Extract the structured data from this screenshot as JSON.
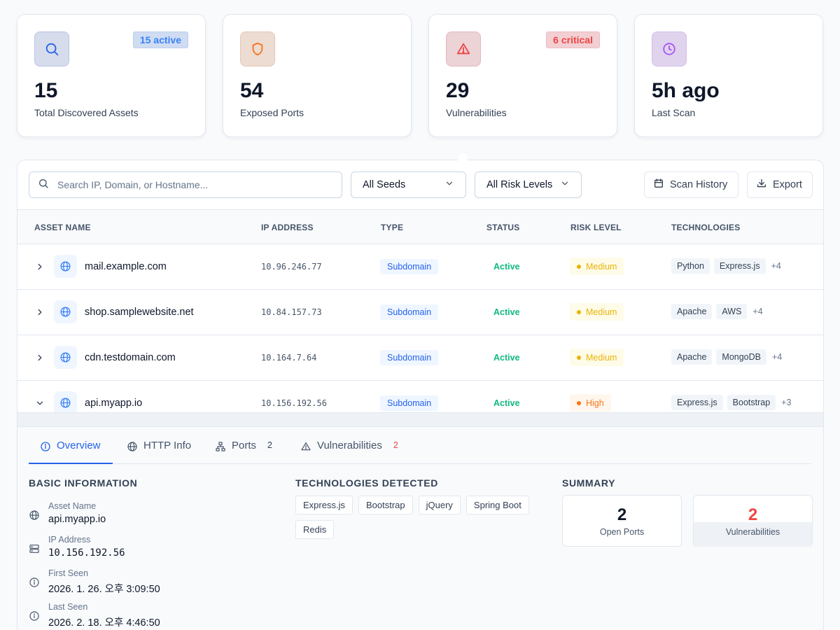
{
  "stats": [
    {
      "value": "15",
      "label": "Total Discovered Assets",
      "badge": "15 active",
      "icon": "search-icon"
    },
    {
      "value": "54",
      "label": "Exposed Ports",
      "badge": "",
      "icon": "shield-icon"
    },
    {
      "value": "29",
      "label": "Vulnerabilities",
      "badge": "6 critical",
      "icon": "warning-icon"
    },
    {
      "value": "5h ago",
      "label": "Last Scan",
      "badge": "",
      "icon": "clock-icon"
    }
  ],
  "toolbar": {
    "search_placeholder": "Search IP, Domain, or Hostname...",
    "seed_filter": "All Seeds",
    "risk_filter": "All Risk Levels",
    "scan_history": "Scan History",
    "export": "Export"
  },
  "table": {
    "headers": [
      "ASSET NAME",
      "IP ADDRESS",
      "TYPE",
      "STATUS",
      "RISK LEVEL",
      "TECHNOLOGIES"
    ],
    "rows": [
      {
        "name": "mail.example.com",
        "ip": "10.96.246.77",
        "type": "Subdomain",
        "status": "Active",
        "risk": "Medium",
        "tech1": "Python",
        "tech2": "Express.js",
        "more": "+4",
        "expanded": false
      },
      {
        "name": "shop.samplewebsite.net",
        "ip": "10.84.157.73",
        "type": "Subdomain",
        "status": "Active",
        "risk": "Medium",
        "tech1": "Apache",
        "tech2": "AWS",
        "more": "+4",
        "expanded": false
      },
      {
        "name": "cdn.testdomain.com",
        "ip": "10.164.7.64",
        "type": "Subdomain",
        "status": "Active",
        "risk": "Medium",
        "tech1": "Apache",
        "tech2": "MongoDB",
        "more": "+4",
        "expanded": false
      },
      {
        "name": "api.myapp.io",
        "ip": "10.156.192.56",
        "type": "Subdomain",
        "status": "Active",
        "risk": "High",
        "tech1": "Express.js",
        "tech2": "Bootstrap",
        "more": "+3",
        "expanded": true
      }
    ]
  },
  "detail": {
    "tabs": [
      {
        "label": "Overview",
        "count": ""
      },
      {
        "label": "HTTP Info",
        "count": ""
      },
      {
        "label": "Ports",
        "count": "2"
      },
      {
        "label": "Vulnerabilities",
        "count": "2"
      }
    ],
    "basic_title": "BASIC INFORMATION",
    "tech_title": "TECHNOLOGIES DETECTED",
    "summary_title": "SUMMARY",
    "info": [
      {
        "label": "Asset Name",
        "value": "api.myapp.io"
      },
      {
        "label": "IP Address",
        "value": "10.156.192.56"
      },
      {
        "label": "First Seen",
        "value": "2026. 1. 26. 오후 3:09:50"
      },
      {
        "label": "Last Seen",
        "value": "2026. 2. 18. 오후 4:46:50"
      }
    ],
    "technologies": [
      "Express.js",
      "Bootstrap",
      "jQuery",
      "Spring Boot",
      "Redis"
    ],
    "summary": [
      {
        "value": "2",
        "label": "Open Ports"
      },
      {
        "value": "2",
        "label": "Vulnerabilities"
      }
    ]
  },
  "colors": {
    "accent": "#2563eb",
    "success": "#10b981",
    "medium": "#eab308",
    "high": "#f97316",
    "critical": "#ef4444"
  }
}
